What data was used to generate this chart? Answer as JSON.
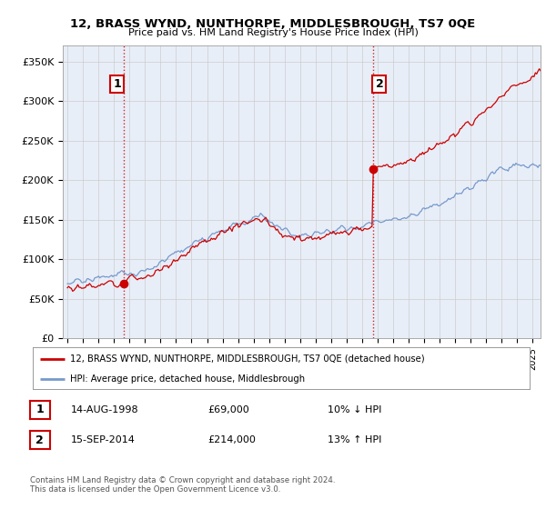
{
  "title": "12, BRASS WYND, NUNTHORPE, MIDDLESBROUGH, TS7 0QE",
  "subtitle": "Price paid vs. HM Land Registry's House Price Index (HPI)",
  "ylabel_ticks": [
    "£0",
    "£50K",
    "£100K",
    "£150K",
    "£200K",
    "£250K",
    "£300K",
    "£350K"
  ],
  "ytick_values": [
    0,
    50000,
    100000,
    150000,
    200000,
    250000,
    300000,
    350000
  ],
  "ylim": [
    0,
    370000
  ],
  "xlim_start": 1994.7,
  "xlim_end": 2025.5,
  "line1_color": "#cc0000",
  "line2_color": "#7799cc",
  "marker_color": "#cc0000",
  "sale1_x": 1998.62,
  "sale1_y": 69000,
  "sale2_x": 2014.71,
  "sale2_y": 214000,
  "vline_color": "#cc0000",
  "bg_plot_color": "#e8eef8",
  "legend_line1": "12, BRASS WYND, NUNTHORPE, MIDDLESBROUGH, TS7 0QE (detached house)",
  "legend_line2": "HPI: Average price, detached house, Middlesbrough",
  "table_row1": [
    "1",
    "14-AUG-1998",
    "£69,000",
    "10% ↓ HPI"
  ],
  "table_row2": [
    "2",
    "15-SEP-2014",
    "£214,000",
    "13% ↑ HPI"
  ],
  "footer": "Contains HM Land Registry data © Crown copyright and database right 2024.\nThis data is licensed under the Open Government Licence v3.0.",
  "background_color": "#ffffff",
  "grid_color": "#cccccc"
}
